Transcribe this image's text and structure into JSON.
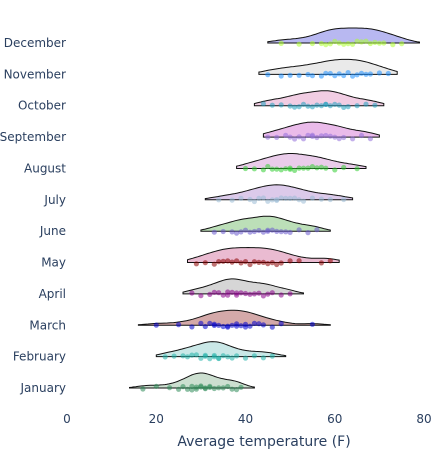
{
  "chart_data": {
    "type": "violin",
    "orientation": "horizontal",
    "side": "positive",
    "xlabel": "Average temperature (F)",
    "xlim": [
      0,
      80
    ],
    "x_ticks": [
      0,
      20,
      40,
      60,
      80
    ],
    "grid": false,
    "legend": "none",
    "categories": [
      "January",
      "February",
      "March",
      "April",
      "May",
      "June",
      "July",
      "August",
      "September",
      "October",
      "November",
      "December"
    ],
    "series": [
      {
        "category": "January",
        "color": "#2E8B57",
        "fill": "#c7dccb",
        "range": [
          14,
          42
        ],
        "points": [
          17,
          20,
          23,
          25,
          26,
          27,
          28,
          28,
          29,
          29,
          30,
          30,
          31,
          31,
          32,
          32,
          33,
          34,
          35,
          36,
          37,
          38,
          39
        ]
      },
      {
        "category": "February",
        "color": "#20B2AA",
        "fill": "#c4e6e4",
        "range": [
          20,
          49
        ],
        "points": [
          22,
          24,
          26,
          27,
          28,
          29,
          30,
          31,
          31,
          32,
          33,
          33,
          34,
          34,
          35,
          36,
          37,
          38,
          40,
          42,
          44,
          46
        ]
      },
      {
        "category": "March",
        "color": "#0000CD",
        "fill": "#cfa0a0",
        "range": [
          16,
          59
        ],
        "points": [
          20,
          25,
          28,
          30,
          31,
          32,
          33,
          33,
          34,
          35,
          36,
          36,
          37,
          38,
          38,
          39,
          40,
          40,
          41,
          42,
          43,
          44,
          46,
          48,
          55
        ]
      },
      {
        "category": "April",
        "color": "#8B008B",
        "fill": "#d1d1d1",
        "range": [
          26,
          53
        ],
        "points": [
          28,
          30,
          32,
          33,
          34,
          35,
          36,
          36,
          37,
          38,
          38,
          39,
          40,
          41,
          42,
          43,
          44,
          45,
          46,
          48,
          50
        ]
      },
      {
        "category": "May",
        "color": "#8B0000",
        "fill": "#e8b4cc",
        "range": [
          27,
          61
        ],
        "points": [
          29,
          31,
          33,
          34,
          35,
          36,
          37,
          38,
          39,
          40,
          41,
          42,
          43,
          44,
          45,
          46,
          47,
          48,
          50,
          52,
          57,
          59
        ]
      },
      {
        "category": "June",
        "color": "#6A5ACD",
        "fill": "#b5dcb0",
        "range": [
          30,
          59
        ],
        "points": [
          33,
          35,
          37,
          38,
          39,
          40,
          41,
          42,
          43,
          44,
          45,
          45,
          46,
          47,
          48,
          49,
          50,
          52,
          54,
          56
        ]
      },
      {
        "category": "July",
        "color": "#9ABCD6",
        "fill": "#d8c4e8",
        "range": [
          31,
          64
        ],
        "points": [
          34,
          37,
          39,
          41,
          42,
          43,
          44,
          45,
          46,
          47,
          47,
          48,
          49,
          50,
          51,
          52,
          53,
          55,
          57,
          59,
          62
        ]
      },
      {
        "category": "August",
        "color": "#32CD32",
        "fill": "#e8c6e8",
        "range": [
          38,
          67
        ],
        "points": [
          40,
          42,
          44,
          45,
          46,
          47,
          48,
          49,
          50,
          50,
          51,
          52,
          53,
          54,
          55,
          56,
          57,
          58,
          60,
          62,
          65
        ]
      },
      {
        "category": "September",
        "color": "#9370DB",
        "fill": "#e8b4e8",
        "range": [
          44,
          70
        ],
        "points": [
          45,
          47,
          49,
          50,
          51,
          52,
          53,
          54,
          55,
          55,
          56,
          57,
          58,
          59,
          60,
          61,
          62,
          64,
          66,
          68
        ]
      },
      {
        "category": "October",
        "color": "#20A0C0",
        "fill": "#f0c8e0",
        "range": [
          42,
          71
        ],
        "points": [
          44,
          46,
          48,
          50,
          51,
          52,
          53,
          54,
          55,
          56,
          57,
          58,
          58,
          59,
          60,
          61,
          62,
          63,
          65,
          67,
          69
        ]
      },
      {
        "category": "November",
        "color": "#1E90FF",
        "fill": "#e8e8e8",
        "range": [
          43,
          74
        ],
        "points": [
          45,
          48,
          50,
          52,
          54,
          55,
          57,
          58,
          59,
          60,
          61,
          62,
          63,
          64,
          65,
          66,
          67,
          68,
          70,
          72
        ]
      },
      {
        "category": "December",
        "color": "#ADFF2F",
        "fill": "#b0b0f0",
        "range": [
          45,
          79
        ],
        "points": [
          48,
          52,
          55,
          57,
          58,
          59,
          60,
          61,
          62,
          63,
          64,
          65,
          66,
          67,
          68,
          69,
          70,
          71,
          73,
          75
        ]
      }
    ]
  }
}
